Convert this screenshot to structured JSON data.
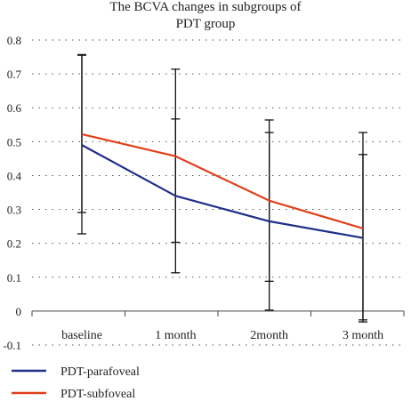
{
  "chart_data": {
    "type": "line",
    "title_line1": "The BCVA changes in subgroups of",
    "title_line2": "PDT group",
    "categories": [
      "baseline",
      "1 month",
      "2month",
      "3 month"
    ],
    "ylim": [
      -0.1,
      0.8
    ],
    "yticks": [
      "0.8",
      "0.7",
      "0.6",
      "0.5",
      "0.4",
      "0.3",
      "0.2",
      "0.1",
      "0",
      "-0.1"
    ],
    "ytick_values": [
      0.8,
      0.7,
      0.6,
      0.5,
      0.4,
      0.3,
      0.2,
      0.1,
      0,
      -0.1
    ],
    "grid": "horizontal dotted",
    "legend_position": "bottom-left",
    "series": [
      {
        "name": "PDT-parafoveal",
        "color": "#1f2f8a",
        "values": [
          0.49,
          0.34,
          0.265,
          0.216
        ],
        "err_low": [
          0.228,
          0.113,
          0.003,
          -0.032
        ],
        "err_high": [
          0.755,
          0.567,
          0.527,
          0.462
        ]
      },
      {
        "name": "PDT-subfoveal",
        "color": "#e0401a",
        "values": [
          0.522,
          0.457,
          0.326,
          0.244
        ],
        "err_low": [
          0.291,
          0.203,
          0.088,
          -0.026
        ],
        "err_high": [
          0.757,
          0.714,
          0.564,
          0.527
        ]
      }
    ]
  }
}
